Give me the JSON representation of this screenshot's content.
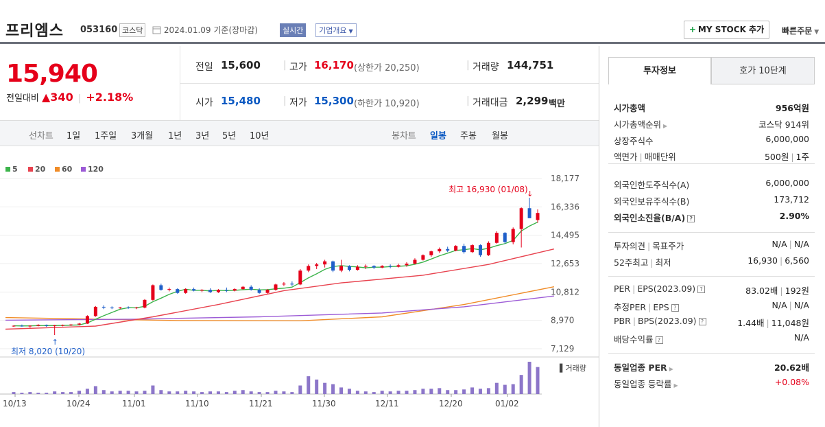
{
  "header": {
    "name": "프리엠스",
    "code": "053160",
    "market": "코스닥",
    "date": "2024.01.09",
    "date_suffix": "기준(장마감)",
    "realtime": "실시간",
    "corp_info": "기업개요",
    "my_stock": "MY STOCK 추가",
    "quick_order": "빠른주문"
  },
  "quote": {
    "price": "15,940",
    "change_label": "전일대비",
    "change_amount": "340",
    "change_rate": "+2.18%",
    "prev_label": "전일",
    "prev": "15,600",
    "high_label": "고가",
    "high": "16,170",
    "upper_limit": "(상한가 20,250)",
    "volume_label": "거래량",
    "volume": "144,751",
    "open_label": "시가",
    "open": "15,480",
    "low_label": "저가",
    "low": "15,300",
    "lower_limit": "(하한가 10,920)",
    "amount_label": "거래대금",
    "amount": "2,299",
    "amount_unit": "백만"
  },
  "period_bar": {
    "line_label": "선차트",
    "line_items": [
      "1일",
      "1주일",
      "3개월",
      "1년",
      "3년",
      "5년",
      "10년"
    ],
    "candle_label": "봉차트",
    "candle_items": [
      "일봉",
      "주봉",
      "월봉"
    ],
    "selected": "일봉"
  },
  "legend": [
    {
      "name": "5",
      "color": "#3cb44b"
    },
    {
      "name": "20",
      "color": "#e8434f"
    },
    {
      "name": "60",
      "color": "#f08c28"
    },
    {
      "name": "120",
      "color": "#9c5bd6"
    }
  ],
  "chart_data": {
    "type": "candlestick",
    "y_ticks": [
      "18,177",
      "16,336",
      "14,495",
      "12,653",
      "10,812",
      "8,970",
      "7,129"
    ],
    "y_range": [
      7129,
      18177
    ],
    "x_labels": [
      "10/13",
      "10/24",
      "11/01",
      "11/10",
      "11/21",
      "11/30",
      "12/11",
      "12/20",
      "01/02"
    ],
    "max_label": "최고 16,930 (01/08)",
    "min_label": "최저 8,020 (10/20)",
    "volume_label": "거래량",
    "candles": [
      [
        8600,
        8650,
        8550,
        8620
      ],
      [
        8620,
        8700,
        8560,
        8600
      ],
      [
        8600,
        8650,
        8500,
        8620
      ],
      [
        8620,
        8720,
        8580,
        8680
      ],
      [
        8680,
        8700,
        8550,
        8620
      ],
      [
        8620,
        8680,
        8020,
        8640
      ],
      [
        8640,
        8700,
        8580,
        8660
      ],
      [
        8660,
        8740,
        8600,
        8700
      ],
      [
        8700,
        8800,
        8640,
        8760
      ],
      [
        8760,
        9300,
        8740,
        9250
      ],
      [
        9250,
        9900,
        9200,
        9850
      ],
      [
        9850,
        9950,
        9700,
        9800
      ],
      [
        9800,
        9880,
        9700,
        9760
      ],
      [
        9760,
        9850,
        9700,
        9800
      ],
      [
        9800,
        9880,
        9720,
        9760
      ],
      [
        9760,
        9850,
        9700,
        9800
      ],
      [
        9800,
        10350,
        9750,
        10300
      ],
      [
        10300,
        11300,
        10250,
        11250
      ],
      [
        11250,
        11350,
        10900,
        10950
      ],
      [
        10950,
        11100,
        10850,
        11000
      ],
      [
        11000,
        11050,
        10700,
        10750
      ],
      [
        10750,
        11050,
        10700,
        11000
      ],
      [
        11000,
        11100,
        10850,
        10900
      ],
      [
        10900,
        11000,
        10800,
        10950
      ],
      [
        10950,
        11050,
        10750,
        10800
      ],
      [
        10800,
        11000,
        10750,
        10950
      ],
      [
        10950,
        11100,
        10800,
        10900
      ],
      [
        10900,
        11050,
        10850,
        11000
      ],
      [
        11000,
        11200,
        10950,
        11150
      ],
      [
        11150,
        11250,
        10900,
        10950
      ],
      [
        10950,
        11050,
        10700,
        10750
      ],
      [
        10750,
        11000,
        10700,
        10950
      ],
      [
        10950,
        11350,
        10900,
        11300
      ],
      [
        11300,
        11450,
        11200,
        11350
      ],
      [
        11350,
        11500,
        11200,
        11300
      ],
      [
        11300,
        12300,
        11250,
        12200
      ],
      [
        12200,
        12600,
        12100,
        12500
      ],
      [
        12500,
        12700,
        12300,
        12600
      ],
      [
        12600,
        12900,
        12400,
        12800
      ],
      [
        12800,
        12850,
        12100,
        12200
      ],
      [
        12200,
        12900,
        12100,
        12500
      ],
      [
        12500,
        12550,
        12150,
        12250
      ],
      [
        12250,
        12550,
        12200,
        12450
      ],
      [
        12450,
        12600,
        12300,
        12500
      ],
      [
        12500,
        12550,
        12300,
        12400
      ],
      [
        12400,
        12550,
        12350,
        12500
      ],
      [
        12500,
        12600,
        12350,
        12450
      ],
      [
        12450,
        12650,
        12400,
        12550
      ],
      [
        12550,
        12750,
        12450,
        12650
      ],
      [
        12650,
        13000,
        12600,
        12900
      ],
      [
        12900,
        13250,
        12850,
        13200
      ],
      [
        13200,
        13500,
        13100,
        13450
      ],
      [
        13450,
        13700,
        13350,
        13600
      ],
      [
        13600,
        13750,
        13400,
        13500
      ],
      [
        13500,
        13850,
        13450,
        13800
      ],
      [
        13800,
        13950,
        13300,
        13400
      ],
      [
        13400,
        13900,
        13350,
        13850
      ],
      [
        13850,
        13900,
        13100,
        13200
      ],
      [
        13200,
        14100,
        13150,
        14000
      ],
      [
        14000,
        14750,
        13950,
        14650
      ],
      [
        14650,
        14700,
        13950,
        14050
      ],
      [
        14050,
        15000,
        13900,
        14900
      ],
      [
        14900,
        16300,
        13700,
        16250
      ],
      [
        16250,
        16930,
        15700,
        15600
      ],
      [
        15480,
        16170,
        15300,
        15940
      ]
    ]
  },
  "invest": {
    "tab1": "투자정보",
    "tab2": "호가 10단계",
    "rows": [
      {
        "k": "시가총액",
        "v": "956억원",
        "b": true
      },
      {
        "k": "시가총액순위",
        "v": "코스닥 914위",
        "arrow": true
      },
      {
        "k": "상장주식수",
        "v": "6,000,000"
      },
      {
        "k": "액면가",
        "k2": "매매단위",
        "v": "500원",
        "v2": "1주"
      },
      {
        "k": "외국인한도주식수(A)",
        "v": "6,000,000"
      },
      {
        "k": "외국인보유주식수(B)",
        "v": "173,712"
      },
      {
        "k": "외국인소진율(B/A)",
        "v": "2.90%",
        "b": true,
        "q": true
      },
      {
        "k": "투자의견",
        "k2": "목표주가",
        "v": "N/A",
        "v2": "N/A"
      },
      {
        "k": "52주최고",
        "k2": "최저",
        "v": "16,930",
        "v2": "6,560"
      },
      {
        "k": "PER",
        "k2": "EPS(2023.09)",
        "v": "83.02배",
        "v2": "192원",
        "q": true
      },
      {
        "k": "추정PER",
        "k2": "EPS",
        "v": "N/A",
        "v2": "N/A",
        "q": true
      },
      {
        "k": "PBR",
        "k2": "BPS(2023.09)",
        "v": "1.44배",
        "v2": "11,048원",
        "q": true
      },
      {
        "k": "배당수익률",
        "v": "N/A",
        "q": true
      },
      {
        "k": "동일업종 PER",
        "v": "20.62배",
        "b": true,
        "arrow": true
      },
      {
        "k": "동일업종 등락률",
        "v": "+0.08%",
        "arrow": true,
        "red": true
      }
    ]
  }
}
